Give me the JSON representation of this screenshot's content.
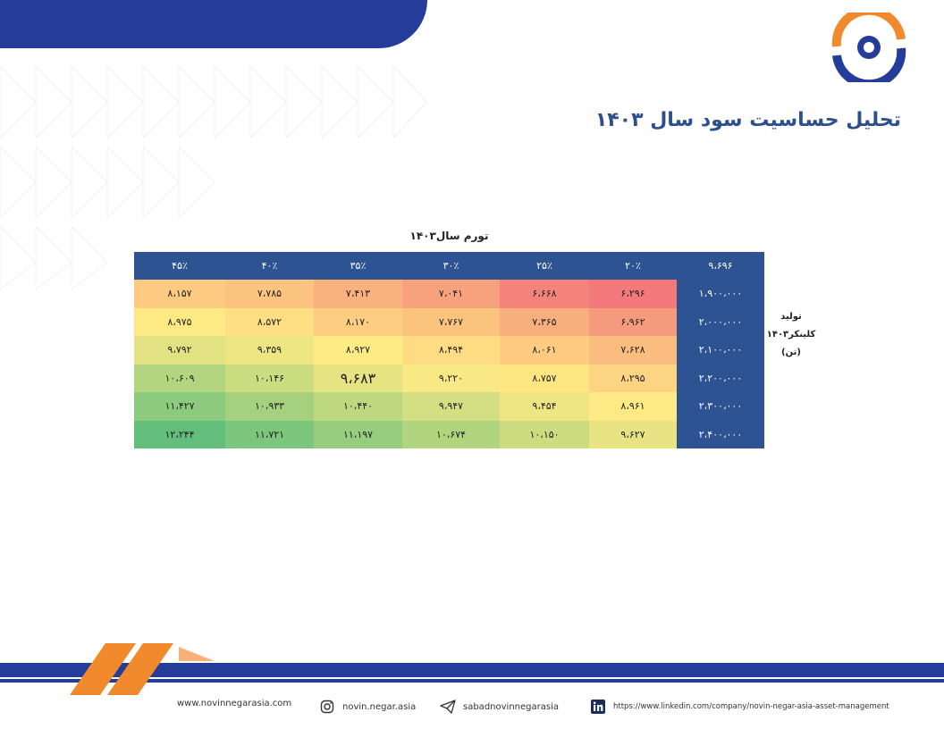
{
  "title": "تحلیل حساسیت سود سال ۱۴۰۳",
  "table": {
    "caption": "تورم سال۱۴۰۳",
    "corner": "۹،۶۹۶",
    "row_label_line1": "تولید",
    "row_label_line2": "کلینکر۱۴۰۳",
    "row_label_line3": "(تن)",
    "columns": [
      "۲۰٪",
      "۲۵٪",
      "۳۰٪",
      "۳۵٪",
      "۴۰٪",
      "۴۵٪"
    ],
    "rows": [
      {
        "label": "۱،۹۰۰،۰۰۰",
        "values": [
          "۶،۲۹۶",
          "۶،۶۶۸",
          "۷،۰۴۱",
          "۷،۴۱۳",
          "۷،۷۸۵",
          "۸،۱۵۷"
        ],
        "colors": [
          "#f3797a",
          "#f4837b",
          "#f8a27d",
          "#f9b17e",
          "#fcc480",
          "#fdca81"
        ]
      },
      {
        "label": "۲،۰۰۰،۰۰۰",
        "values": [
          "۶،۹۶۲",
          "۷،۳۶۵",
          "۷،۷۶۷",
          "۸،۱۷۰",
          "۸،۵۷۲",
          "۸،۹۷۵"
        ],
        "colors": [
          "#f59a7d",
          "#f9ae7e",
          "#fcc37f",
          "#fdcd81",
          "#fedf83",
          "#feea84"
        ]
      },
      {
        "label": "۲،۱۰۰،۰۰۰",
        "values": [
          "۷،۶۲۸",
          "۸،۰۶۱",
          "۸،۴۹۴",
          "۸،۹۲۷",
          "۹،۳۵۹",
          "۹،۷۹۲"
        ],
        "colors": [
          "#fbbc80",
          "#fdcc81",
          "#fedc83",
          "#feeb84",
          "#eee683",
          "#e2e283"
        ]
      },
      {
        "label": "۲،۲۰۰،۰۰۰",
        "values": [
          "۸،۲۹۵",
          "۸،۷۵۷",
          "۹،۲۲۰",
          "۹،۶۸۳",
          "۱۰،۱۴۶",
          "۱۰،۶۰۹"
        ],
        "colors": [
          "#fdd482",
          "#fee683",
          "#f8e984",
          "#e6e383",
          "#cbdc81",
          "#b4d57f"
        ]
      },
      {
        "label": "۲،۳۰۰،۰۰۰",
        "values": [
          "۸،۹۶۱",
          "۹،۴۵۴",
          "۹،۹۴۷",
          "۱۰،۴۴۰",
          "۱۰،۹۳۳",
          "۱۱،۴۲۷"
        ],
        "colors": [
          "#feea84",
          "#eee683",
          "#d4de82",
          "#bed87f",
          "#a5d17f",
          "#8cca7e"
        ]
      },
      {
        "label": "۲،۴۰۰،۰۰۰",
        "values": [
          "۹،۶۲۷",
          "۱۰،۱۵۰",
          "۱۰،۶۷۴",
          "۱۱،۱۹۷",
          "۱۱،۷۲۱",
          "۱۲،۲۴۴"
        ],
        "colors": [
          "#e8e483",
          "#cedc81",
          "#b1d47f",
          "#97cd7e",
          "#7cc57c",
          "#63be7b"
        ]
      }
    ]
  },
  "footer": {
    "website": "www.novinnegarasia.com",
    "instagram": "novin.negar.asia",
    "telegram": "sabadnovinnegarasia",
    "linkedin": "https://www.linkedin.com/company/novin-negar-asia-asset-management"
  },
  "colors": {
    "brand_blue": "#243c9a",
    "header_blue": "#2e5393",
    "accent_orange": "#f18a2c",
    "title_color": "#2d4f8e"
  },
  "icons": [
    "logo-eye-icon",
    "instagram-icon",
    "telegram-icon",
    "linkedin-icon"
  ]
}
